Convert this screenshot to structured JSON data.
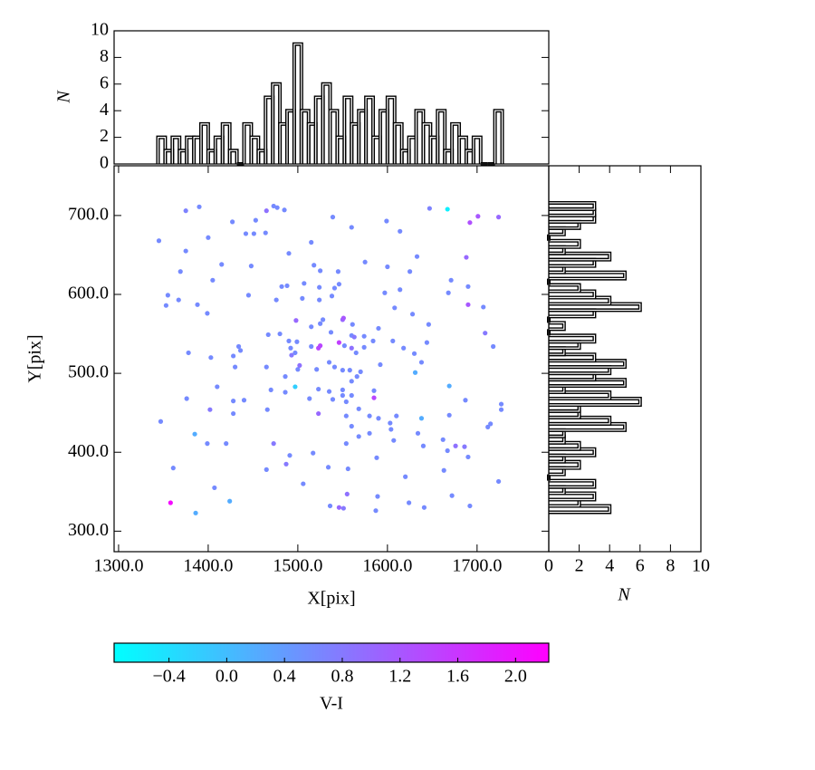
{
  "chart_data": [
    {
      "type": "scatter",
      "xlabel": "X[pix]",
      "ylabel": "Y[pix]",
      "xlim": [
        1295,
        1780
      ],
      "ylim": [
        274,
        763
      ],
      "xticks": [
        {
          "value": 1300,
          "label": "1300.0"
        },
        {
          "value": 1400,
          "label": "1400.0"
        },
        {
          "value": 1500,
          "label": "1500.0"
        },
        {
          "value": 1600,
          "label": "1600.0"
        },
        {
          "value": 1700,
          "label": "1700.0"
        }
      ],
      "yticks": [
        {
          "value": 300,
          "label": "300.0"
        },
        {
          "value": 400,
          "label": "400.0"
        },
        {
          "value": 500,
          "label": "500.0"
        },
        {
          "value": 600,
          "label": "600.0"
        },
        {
          "value": 700,
          "label": "700.0"
        }
      ],
      "x": [
        1345,
        1375,
        1390,
        1400,
        1375,
        1415,
        1369,
        1355,
        1353,
        1367,
        1405,
        1388,
        1399,
        1445,
        1448,
        1427,
        1442,
        1451,
        1453,
        1464,
        1465,
        1473,
        1477,
        1485,
        1490,
        1515,
        1518,
        1525,
        1539,
        1560,
        1575,
        1599,
        1614,
        1647,
        1667,
        1692,
        1701,
        1724,
        1688,
        1671,
        1668,
        1690,
        1690,
        1709,
        1718,
        1707,
        1633,
        1625,
        1614,
        1600,
        1628,
        1646,
        1644,
        1630,
        1638,
        1631,
        1669,
        1687,
        1669,
        1638,
        1634,
        1640,
        1662,
        1667,
        1676,
        1686,
        1690,
        1712,
        1715,
        1727,
        1727,
        1724,
        1692,
        1672,
        1663,
        1641,
        1624,
        1587,
        1589,
        1620,
        1588,
        1607,
        1604,
        1603,
        1610,
        1590,
        1580,
        1560,
        1580,
        1568,
        1554,
        1556,
        1555,
        1546,
        1551,
        1536,
        1534,
        1506,
        1517,
        1491,
        1487,
        1473,
        1465,
        1420,
        1424,
        1386,
        1407,
        1358,
        1361,
        1347,
        1385,
        1399,
        1402,
        1410,
        1428,
        1440,
        1428,
        1376,
        1378,
        1428,
        1434,
        1436,
        1430,
        1403,
        1465,
        1467,
        1480,
        1466,
        1470,
        1486,
        1486,
        1497,
        1500,
        1502,
        1499,
        1497,
        1490,
        1492,
        1498,
        1493,
        1515,
        1515,
        1525,
        1528,
        1525,
        1521,
        1535,
        1541,
        1546,
        1550,
        1537,
        1561,
        1560,
        1552,
        1560,
        1563,
        1565,
        1574,
        1574,
        1570,
        1550,
        1558,
        1566,
        1560,
        1550,
        1535,
        1523,
        1523,
        1513,
        1539,
        1554,
        1554,
        1585,
        1585,
        1568,
        1560,
        1550,
        1590,
        1592,
        1584,
        1606,
        1618,
        1608,
        1597,
        1546,
        1541,
        1524,
        1524,
        1507,
        1488,
        1482,
        1476,
        1538,
        1545,
        1505,
        1523,
        1551
      ],
      "y": [
        668,
        706,
        711,
        672,
        655,
        638,
        629,
        599,
        586,
        593,
        618,
        587,
        576,
        599,
        636,
        692,
        677,
        677,
        694,
        678,
        706,
        712,
        710,
        707,
        652,
        666,
        637,
        630,
        698,
        685,
        641,
        693,
        680,
        709,
        708,
        691,
        699,
        698,
        647,
        618,
        602,
        610,
        587,
        551,
        534,
        584,
        648,
        629,
        606,
        635,
        575,
        562,
        539,
        525,
        514,
        501,
        484,
        466,
        447,
        443,
        424,
        408,
        416,
        402,
        408,
        407,
        394,
        432,
        436,
        461,
        454,
        363,
        332,
        345,
        377,
        330,
        336,
        326,
        344,
        369,
        393,
        415,
        429,
        437,
        446,
        443,
        446,
        433,
        424,
        420,
        411,
        379,
        347,
        330,
        329,
        332,
        381,
        360,
        399,
        396,
        385,
        411,
        378,
        411,
        338,
        323,
        355,
        336,
        380,
        439,
        423,
        411,
        454,
        483,
        465,
        466,
        449,
        468,
        526,
        522,
        534,
        529,
        508,
        520,
        508,
        549,
        550,
        454,
        479,
        496,
        476,
        483,
        505,
        510,
        540,
        526,
        541,
        532,
        567,
        523,
        534,
        559,
        563,
        568,
        535,
        505,
        514,
        508,
        539,
        568,
        552,
        562,
        548,
        535,
        532,
        546,
        526,
        533,
        547,
        502,
        504,
        504,
        496,
        490,
        479,
        477,
        480,
        449,
        468,
        467,
        464,
        446,
        478,
        469,
        455,
        472,
        472,
        557,
        511,
        541,
        541,
        532,
        583,
        602,
        613,
        608,
        609,
        593,
        614,
        611,
        610,
        593,
        598,
        629,
        595,
        532,
        570
      ],
      "c": [
        0.6,
        0.7,
        0.6,
        0.6,
        0.6,
        0.6,
        0.6,
        0.6,
        0.6,
        0.6,
        0.6,
        0.6,
        0.6,
        0.6,
        0.6,
        0.6,
        0.6,
        0.6,
        0.6,
        0.6,
        0.9,
        0.6,
        0.6,
        0.6,
        0.6,
        0.6,
        0.6,
        0.6,
        0.6,
        0.6,
        0.6,
        0.6,
        0.6,
        0.7,
        -0.6,
        1.3,
        1.2,
        1.0,
        1.0,
        0.6,
        0.6,
        0.6,
        1.2,
        0.8,
        0.6,
        0.6,
        0.6,
        0.6,
        0.6,
        0.6,
        0.6,
        0.6,
        0.6,
        0.6,
        0.6,
        0.2,
        0.2,
        0.6,
        0.6,
        0.2,
        0.6,
        0.6,
        0.6,
        0.6,
        0.9,
        0.8,
        0.6,
        0.6,
        0.6,
        0.6,
        0.6,
        0.6,
        0.6,
        0.6,
        0.6,
        0.6,
        0.6,
        0.6,
        0.6,
        0.6,
        0.6,
        0.6,
        0.6,
        0.6,
        0.6,
        0.6,
        0.6,
        0.6,
        0.6,
        0.6,
        0.6,
        0.6,
        0.9,
        1.0,
        0.8,
        0.6,
        0.6,
        0.6,
        0.6,
        0.6,
        0.8,
        0.8,
        0.6,
        0.6,
        0.2,
        0.2,
        0.6,
        2.1,
        0.6,
        0.6,
        0.2,
        0.6,
        0.8,
        0.6,
        0.6,
        0.6,
        0.6,
        0.6,
        0.6,
        0.6,
        0.6,
        0.6,
        0.6,
        0.6,
        0.6,
        0.6,
        0.6,
        0.6,
        0.6,
        0.6,
        0.6,
        -0.2,
        0.6,
        0.9,
        0.6,
        0.6,
        0.6,
        0.6,
        1.0,
        0.8,
        0.6,
        0.6,
        0.6,
        0.6,
        1.4,
        0.6,
        0.6,
        0.6,
        1.5,
        1.0,
        0.6,
        0.6,
        0.6,
        0.6,
        0.9,
        0.8,
        0.6,
        0.6,
        0.6,
        0.6,
        0.6,
        0.6,
        0.6,
        0.6,
        0.6,
        0.6,
        0.6,
        1.0,
        0.6,
        0.6,
        0.6,
        0.6,
        0.6,
        1.4,
        0.6,
        0.6,
        0.6,
        0.6,
        0.6,
        0.6,
        0.6,
        0.6,
        0.6,
        0.6,
        0.6,
        0.6,
        0.6,
        0.6,
        0.6,
        0.6,
        0.6,
        0.6,
        0.6,
        0.6,
        0.6,
        1.4,
        1.2
      ],
      "colorbar": {
        "label": "V-I",
        "lim": [
          -0.78,
          2.23
        ],
        "colors": [
          "#00ffff",
          "#ff00ff"
        ],
        "ticks": [
          {
            "value": -0.4,
            "label": "−0.4"
          },
          {
            "value": 0,
            "label": "0.0"
          },
          {
            "value": 0.4,
            "label": "0.4"
          },
          {
            "value": 0.8,
            "label": "0.8"
          },
          {
            "value": 1.2,
            "label": "1.2"
          },
          {
            "value": 1.6,
            "label": "1.6"
          },
          {
            "value": 2.0,
            "label": "2.0"
          }
        ]
      }
    },
    {
      "type": "histogram",
      "orientation": "vertical",
      "ylabel": "N",
      "xlim": [
        1295,
        1780
      ],
      "ylim": [
        0,
        10
      ],
      "yticks": [
        0,
        2,
        4,
        6,
        8,
        10
      ],
      "color": "#000000",
      "bins": [
        1344,
        1352,
        1360,
        1368,
        1376,
        1384,
        1392,
        1400,
        1408,
        1416,
        1424,
        1432,
        1440,
        1448,
        1456,
        1464,
        1472,
        1480,
        1488,
        1496,
        1504,
        1512,
        1520,
        1528,
        1536,
        1544,
        1552,
        1560,
        1568,
        1576,
        1584,
        1592,
        1600,
        1608,
        1616,
        1624,
        1632,
        1640,
        1648,
        1656,
        1664,
        1672,
        1680,
        1688,
        1696,
        1704,
        1712,
        1720,
        1728
      ],
      "counts": [
        2,
        1,
        2,
        1,
        2,
        2,
        3,
        1,
        2,
        3,
        1,
        0,
        3,
        2,
        1,
        5,
        6,
        3,
        4,
        9,
        4,
        3,
        5,
        6,
        4,
        2,
        5,
        3,
        4,
        5,
        2,
        4,
        5,
        3,
        1,
        2,
        4,
        3,
        2,
        4,
        1,
        3,
        2,
        1,
        2,
        0,
        0,
        4
      ]
    },
    {
      "type": "histogram",
      "orientation": "horizontal",
      "xlabel": "N",
      "xlim": [
        0,
        10
      ],
      "ylim": [
        274,
        763
      ],
      "xticks": [
        0,
        2,
        4,
        6,
        8,
        10
      ],
      "color": "#000000",
      "bins": [
        324,
        332,
        340,
        348,
        356,
        364,
        372,
        380,
        388,
        396,
        404,
        412,
        420,
        428,
        436,
        444,
        452,
        460,
        468,
        476,
        484,
        492,
        500,
        508,
        516,
        524,
        532,
        540,
        548,
        556,
        564,
        572,
        580,
        588,
        596,
        604,
        612,
        620,
        628,
        636,
        644,
        652,
        660,
        668,
        676,
        684,
        692,
        700,
        708,
        716
      ],
      "counts": [
        4,
        2,
        3,
        1,
        3,
        0,
        1,
        2,
        1,
        3,
        2,
        1,
        1,
        5,
        4,
        2,
        2,
        6,
        4,
        1,
        5,
        3,
        4,
        5,
        3,
        1,
        2,
        3,
        0,
        1,
        0,
        3,
        6,
        4,
        3,
        2,
        0,
        5,
        1,
        3,
        4,
        1,
        2,
        0,
        1,
        2,
        3,
        3,
        3
      ]
    }
  ]
}
